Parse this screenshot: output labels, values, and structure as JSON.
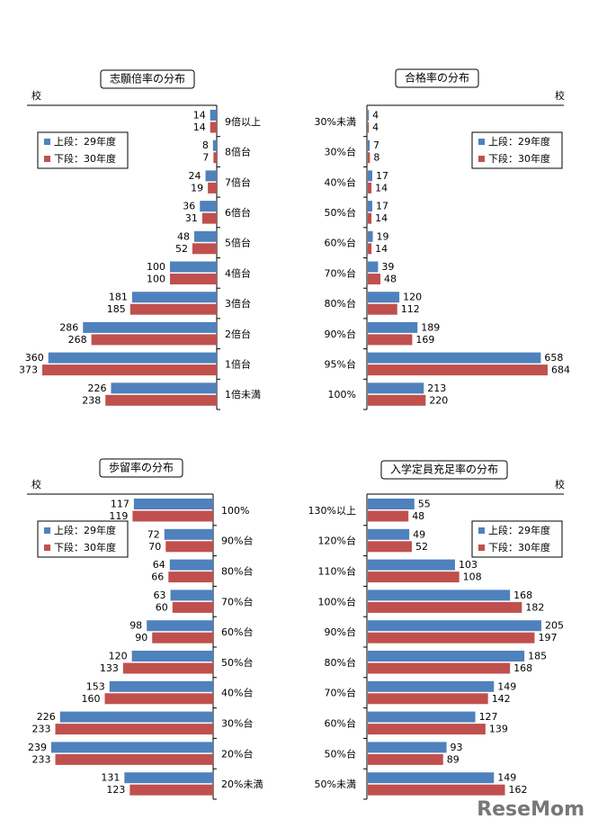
{
  "chart_data": [
    {
      "type": "bar",
      "orientation": "horizontal",
      "x_reversed": true,
      "title": "志願倍率の分布",
      "unit_label": "校",
      "legend": "top-left",
      "categories": [
        "9倍以上",
        "8倍台",
        "7倍台",
        "6倍台",
        "5倍台",
        "4倍台",
        "3倍台",
        "2倍台",
        "1倍台",
        "1倍未満"
      ],
      "series": [
        {
          "name": "上段：29年度",
          "color": "#4f81bd",
          "values": [
            14,
            8,
            24,
            36,
            48,
            100,
            181,
            286,
            360,
            226
          ]
        },
        {
          "name": "下段：30年度",
          "color": "#c0504d",
          "values": [
            14,
            7,
            19,
            31,
            52,
            100,
            185,
            268,
            373,
            238
          ]
        }
      ]
    },
    {
      "type": "bar",
      "orientation": "horizontal",
      "x_reversed": false,
      "title": "合格率の分布",
      "unit_label": "校",
      "legend": "top-right",
      "categories": [
        "30%未満",
        "30%台",
        "40%台",
        "50%台",
        "60%台",
        "70%台",
        "80%台",
        "90%台",
        "95%台",
        "100%"
      ],
      "series": [
        {
          "name": "上段：29年度",
          "color": "#4f81bd",
          "values": [
            4,
            7,
            17,
            17,
            19,
            39,
            120,
            189,
            658,
            213
          ]
        },
        {
          "name": "下段：30年度",
          "color": "#c0504d",
          "values": [
            4,
            8,
            14,
            14,
            14,
            48,
            112,
            169,
            684,
            220
          ]
        }
      ]
    },
    {
      "type": "bar",
      "orientation": "horizontal",
      "x_reversed": true,
      "title": "歩留率の分布",
      "unit_label": "校",
      "legend": "top-left",
      "categories": [
        "100%",
        "90%台",
        "80%台",
        "70%台",
        "60%台",
        "50%台",
        "40%台",
        "30%台",
        "20%台",
        "20%未満"
      ],
      "series": [
        {
          "name": "上段：29年度",
          "color": "#4f81bd",
          "values": [
            117,
            72,
            64,
            63,
            98,
            120,
            153,
            226,
            239,
            131
          ]
        },
        {
          "name": "下段：30年度",
          "color": "#c0504d",
          "values": [
            119,
            70,
            66,
            60,
            90,
            133,
            160,
            233,
            233,
            123
          ]
        }
      ]
    },
    {
      "type": "bar",
      "orientation": "horizontal",
      "x_reversed": false,
      "title": "入学定員充足率の分布",
      "unit_label": "校",
      "legend": "top-right",
      "categories": [
        "130%以上",
        "120%台",
        "110%台",
        "100%台",
        "90%台",
        "80%台",
        "70%台",
        "60%台",
        "50%台",
        "50%未満"
      ],
      "series": [
        {
          "name": "上段：29年度",
          "color": "#4f81bd",
          "values": [
            55,
            49,
            103,
            168,
            205,
            185,
            149,
            127,
            93,
            149
          ]
        },
        {
          "name": "下段：30年度",
          "color": "#c0504d",
          "values": [
            48,
            52,
            108,
            182,
            197,
            168,
            142,
            139,
            89,
            162
          ]
        }
      ]
    }
  ],
  "watermark": "ReseMom"
}
